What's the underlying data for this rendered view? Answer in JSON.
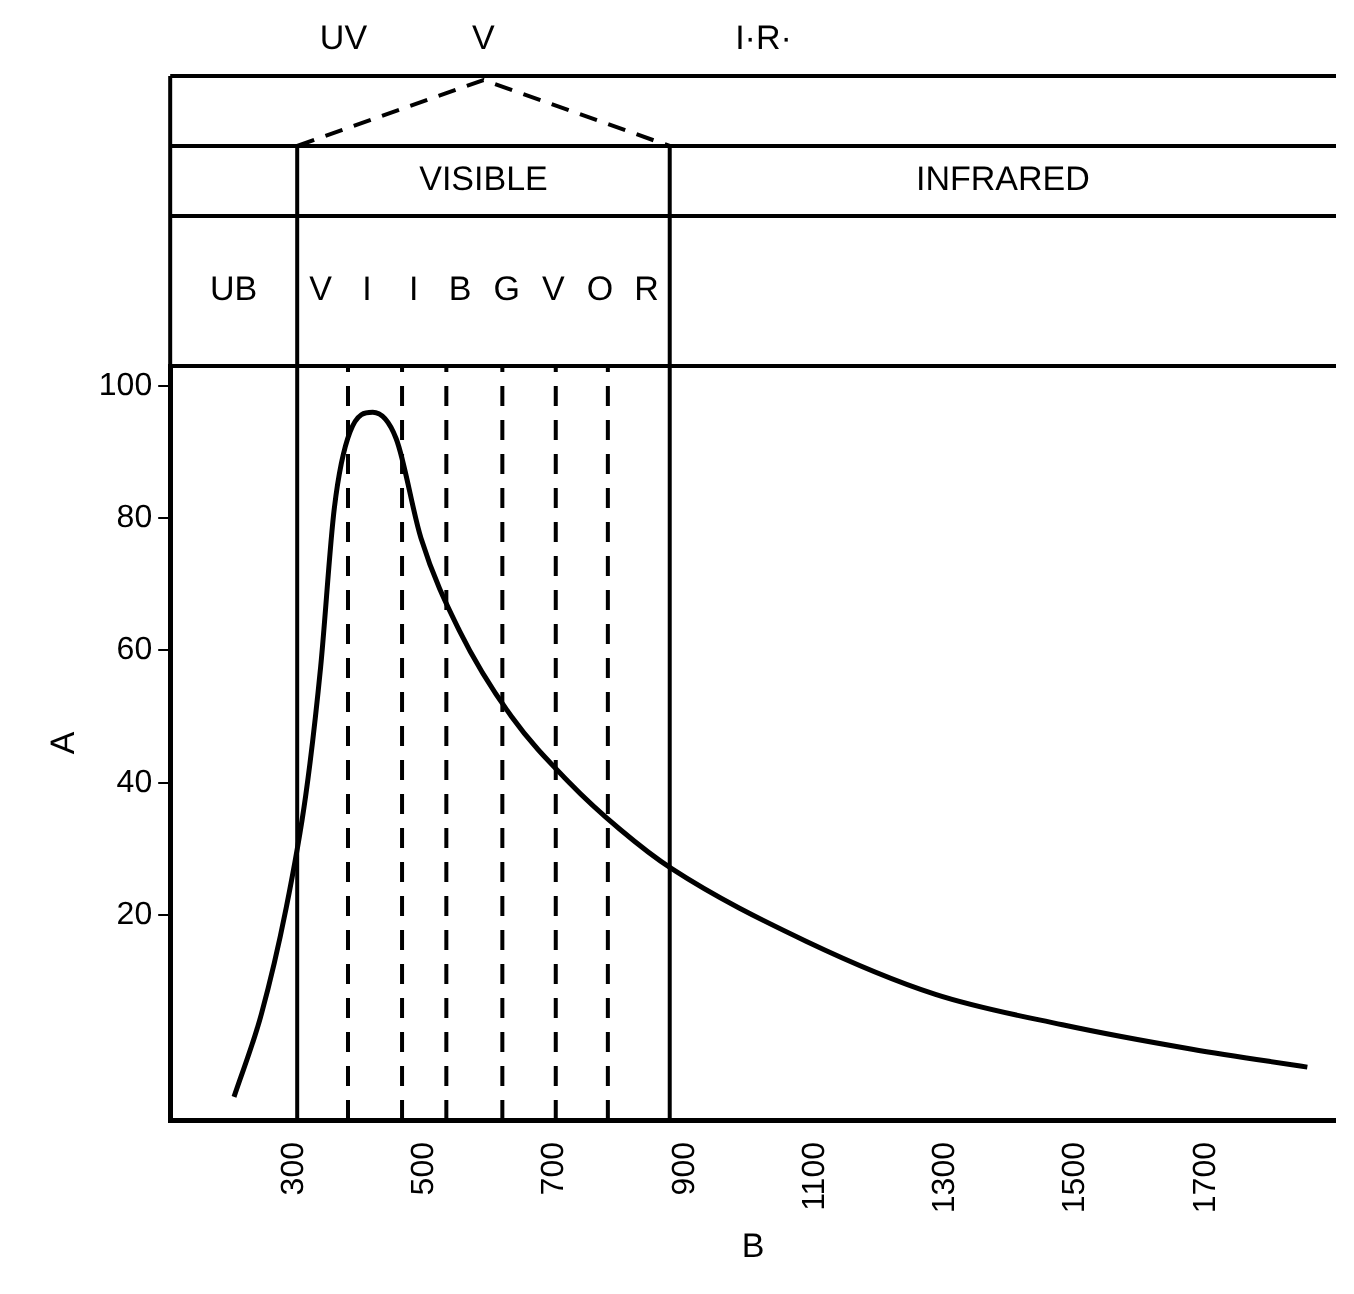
{
  "chart_data": {
    "type": "line",
    "xlabel": "B",
    "ylabel": "A",
    "xlim": [
      110,
      1900
    ],
    "ylim": [
      -11,
      103
    ],
    "xticks": [
      300,
      500,
      700,
      900,
      1100,
      1300,
      1500,
      1700
    ],
    "yticks": [
      20,
      40,
      60,
      80,
      100
    ],
    "grid": false,
    "legend": false,
    "marker": "none",
    "line_style": "solid",
    "series": [
      {
        "color": "#000000",
        "x": [
          208,
          250,
          288,
          318,
          341,
          362,
          386,
          421,
          457,
          495,
          554,
          634,
          723,
          800,
          880,
          1087,
          1285,
          1480,
          1679,
          1856
        ],
        "values": [
          -7.5,
          5,
          21,
          38,
          57.5,
          81.5,
          93,
          96,
          92,
          77,
          63,
          50,
          40,
          33,
          27,
          16,
          8,
          3.4,
          -0.3,
          -3
        ]
      }
    ],
    "ref_lines": [
      {
        "axis": "x",
        "value": 305,
        "color": "#000000",
        "line_style": "solid"
      },
      {
        "axis": "x",
        "value": 383,
        "color": "#000000",
        "line_style": "dashed"
      },
      {
        "axis": "x",
        "value": 466,
        "color": "#000000",
        "line_style": "dashed"
      },
      {
        "axis": "x",
        "value": 534,
        "color": "#000000",
        "line_style": "dashed"
      },
      {
        "axis": "x",
        "value": 620,
        "color": "#000000",
        "line_style": "dashed"
      },
      {
        "axis": "x",
        "value": 702,
        "color": "#000000",
        "line_style": "dashed"
      },
      {
        "axis": "x",
        "value": 782,
        "color": "#000000",
        "line_style": "dashed"
      },
      {
        "axis": "x",
        "value": 877,
        "color": "#000000",
        "line_style": "solid"
      }
    ],
    "annotations": [
      "UV",
      "V",
      "I·R·",
      "VISIBLE",
      "INFRARED",
      "UB",
      "V",
      "I",
      "I",
      "B",
      "G",
      "V",
      "O",
      "R"
    ]
  }
}
